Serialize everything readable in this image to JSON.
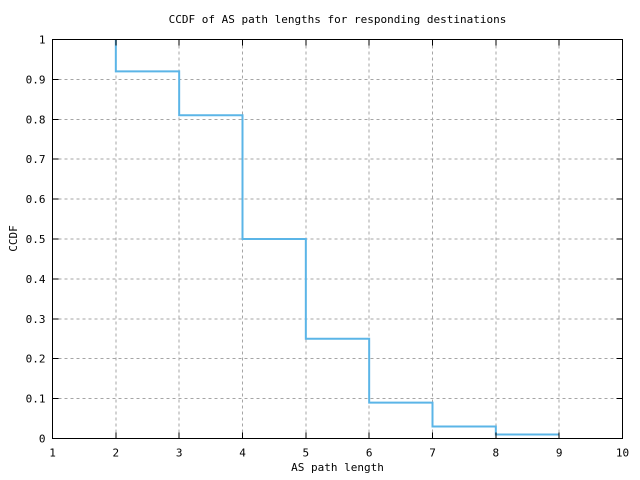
{
  "chart_data": {
    "type": "line",
    "subtype": "step-function",
    "title": "CCDF of AS path lengths for responding destinations",
    "xlabel": "AS path length",
    "ylabel": "CCDF",
    "xlim": [
      1,
      10
    ],
    "ylim": [
      0,
      1
    ],
    "xticks": [
      1,
      2,
      3,
      4,
      5,
      6,
      7,
      8,
      9,
      10
    ],
    "xtick_labels": [
      "1",
      "2",
      "3",
      "4",
      "5",
      "6",
      "7",
      "8",
      "9",
      "10"
    ],
    "yticks": [
      0,
      0.1,
      0.2,
      0.3,
      0.4,
      0.5,
      0.6,
      0.7,
      0.8,
      0.9,
      1
    ],
    "ytick_labels": [
      "0",
      "0.1",
      "0.2",
      "0.3",
      "0.4",
      "0.5",
      "0.6",
      "0.7",
      "0.8",
      "0.9",
      "1"
    ],
    "grid": true,
    "legend": "none",
    "line_color": "#5bb5e7",
    "grid_color": "#a5a5a5",
    "border_color": "#000000",
    "series": [
      {
        "name": "CCDF",
        "points": [
          [
            2,
            1.0
          ],
          [
            2,
            0.92
          ],
          [
            3,
            0.92
          ],
          [
            3,
            0.81
          ],
          [
            4,
            0.81
          ],
          [
            4,
            0.5
          ],
          [
            5,
            0.5
          ],
          [
            5,
            0.25
          ],
          [
            6,
            0.25
          ],
          [
            6,
            0.09
          ],
          [
            7,
            0.09
          ],
          [
            7,
            0.03
          ],
          [
            8,
            0.03
          ],
          [
            8,
            0.01
          ],
          [
            9,
            0.01
          ]
        ]
      }
    ]
  }
}
